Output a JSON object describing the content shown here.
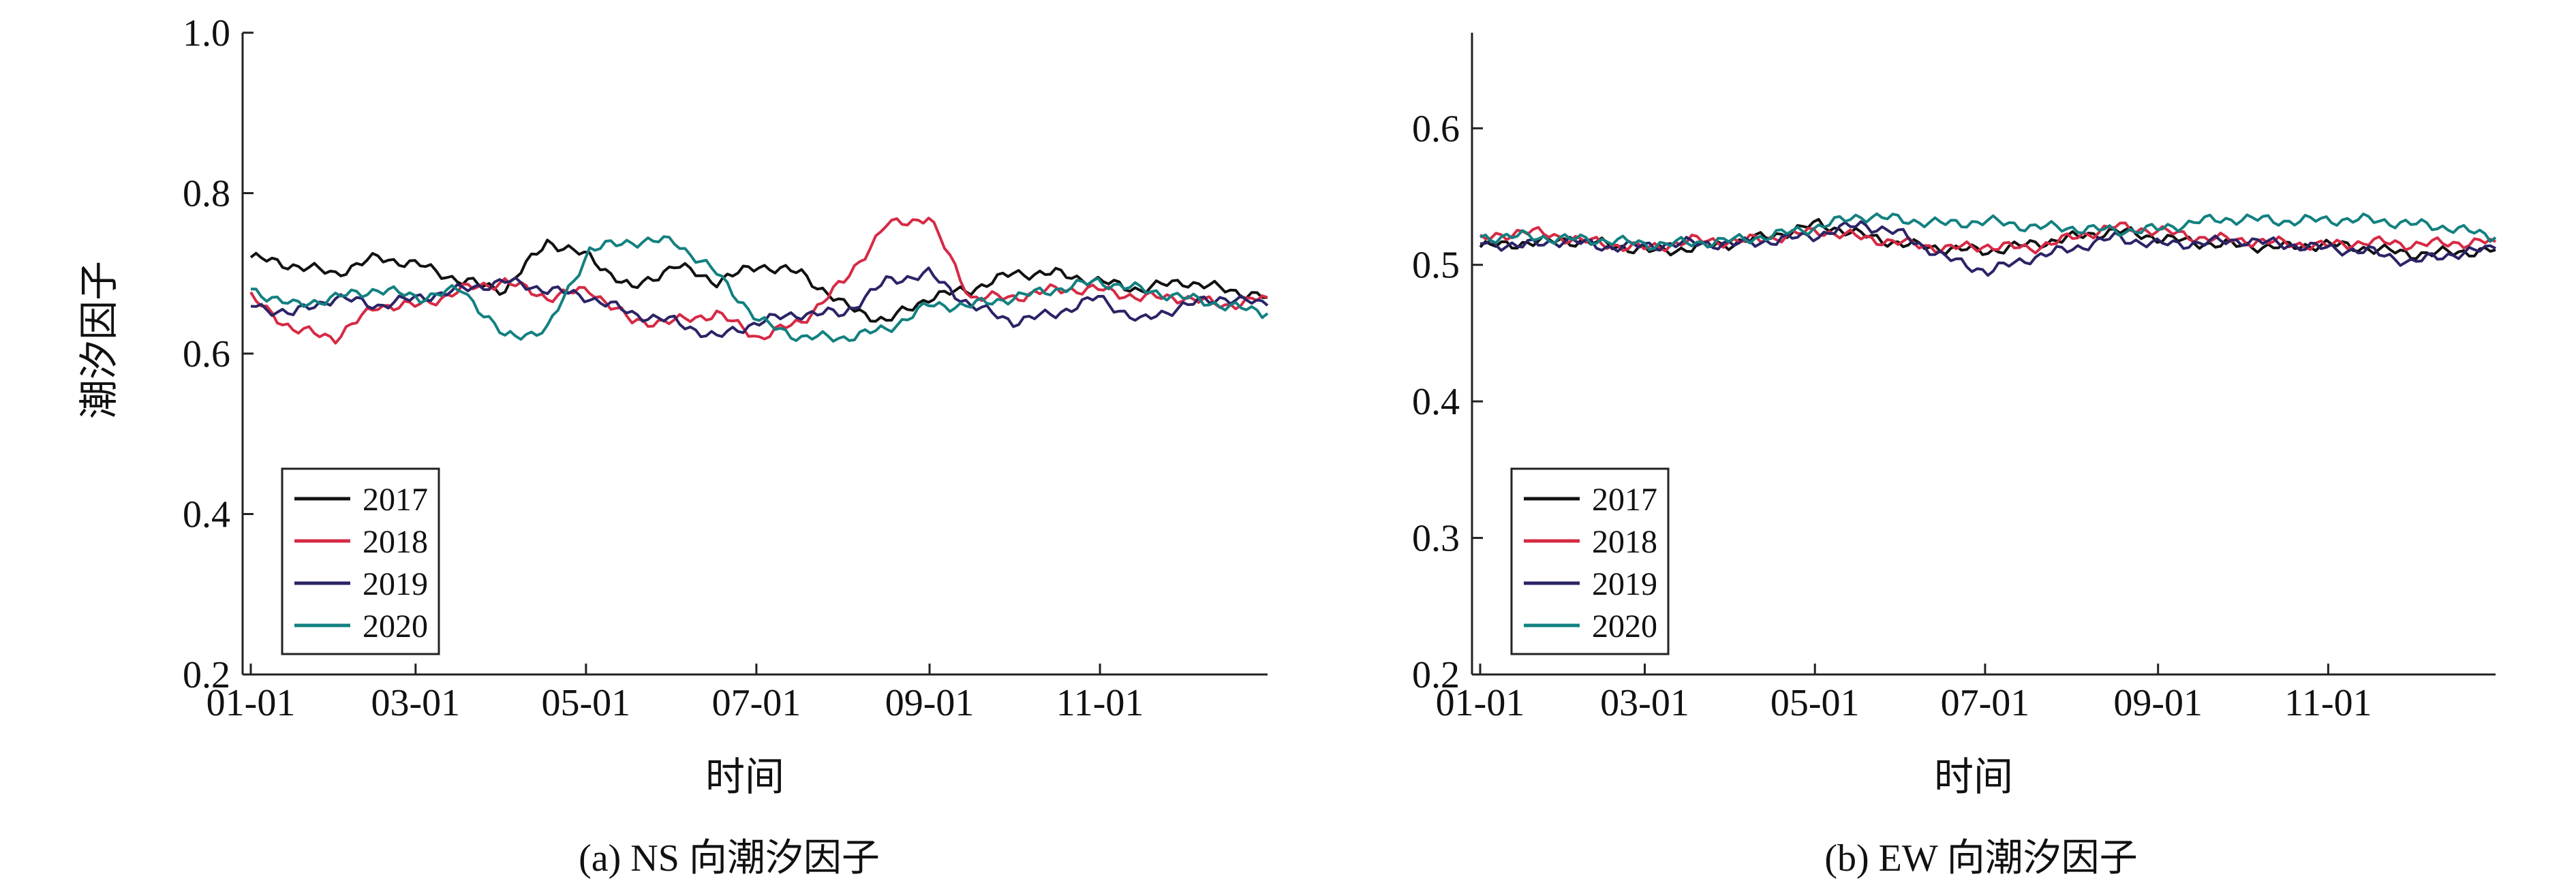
{
  "chart_data": [
    {
      "type": "line",
      "caption": "(a) NS 向潮汐因子",
      "xlabel": "时间",
      "ylabel": "潮汐因子",
      "x_ticks": [
        "01-01",
        "03-01",
        "05-01",
        "07-01",
        "09-01",
        "11-01"
      ],
      "y_ticks": [
        "0.2",
        "0.4",
        "0.6",
        "0.8",
        "1.0"
      ],
      "ylim": [
        0.2,
        1.0
      ],
      "x": [
        "01-01",
        "01-15",
        "02-01",
        "02-15",
        "03-01",
        "03-15",
        "04-01",
        "04-15",
        "05-01",
        "05-15",
        "06-01",
        "06-15",
        "07-01",
        "07-15",
        "08-01",
        "08-15",
        "09-01",
        "09-15",
        "10-01",
        "10-15",
        "11-01",
        "11-15",
        "12-01",
        "12-15",
        "12-31"
      ],
      "legend_position": "bottom-left",
      "series": [
        {
          "name": "2017",
          "color": "#111111",
          "values": [
            0.72,
            0.71,
            0.7,
            0.72,
            0.71,
            0.69,
            0.68,
            0.74,
            0.72,
            0.68,
            0.71,
            0.69,
            0.71,
            0.7,
            0.66,
            0.64,
            0.67,
            0.68,
            0.7,
            0.7,
            0.69,
            0.68,
            0.69,
            0.68,
            0.67
          ]
        },
        {
          "name": "2018",
          "color": "#d62a45",
          "values": [
            0.67,
            0.63,
            0.62,
            0.66,
            0.66,
            0.68,
            0.69,
            0.67,
            0.68,
            0.64,
            0.64,
            0.65,
            0.62,
            0.64,
            0.69,
            0.76,
            0.77,
            0.67,
            0.67,
            0.68,
            0.68,
            0.67,
            0.67,
            0.66,
            0.67
          ]
        },
        {
          "name": "2019",
          "color": "#2b2466",
          "values": [
            0.66,
            0.65,
            0.67,
            0.66,
            0.67,
            0.68,
            0.69,
            0.68,
            0.67,
            0.65,
            0.64,
            0.62,
            0.64,
            0.65,
            0.65,
            0.69,
            0.7,
            0.66,
            0.64,
            0.65,
            0.67,
            0.64,
            0.66,
            0.67,
            0.66
          ]
        },
        {
          "name": "2020",
          "color": "#138080",
          "values": [
            0.68,
            0.66,
            0.67,
            0.68,
            0.67,
            0.68,
            0.62,
            0.63,
            0.73,
            0.74,
            0.74,
            0.7,
            0.64,
            0.62,
            0.62,
            0.63,
            0.66,
            0.66,
            0.67,
            0.68,
            0.69,
            0.68,
            0.67,
            0.66,
            0.65
          ]
        }
      ]
    },
    {
      "type": "line",
      "caption": "(b) EW 向潮汐因子",
      "xlabel": "时间",
      "ylabel": "",
      "x_ticks": [
        "01-01",
        "03-01",
        "05-01",
        "07-01",
        "09-01",
        "11-01"
      ],
      "y_ticks": [
        "0.2",
        "0.3",
        "0.4",
        "0.5",
        "0.6"
      ],
      "ylim": [
        0.2,
        0.67
      ],
      "x": [
        "01-01",
        "01-15",
        "02-01",
        "02-15",
        "03-01",
        "03-15",
        "04-01",
        "04-15",
        "05-01",
        "05-15",
        "06-01",
        "06-15",
        "07-01",
        "07-15",
        "08-01",
        "08-15",
        "09-01",
        "09-15",
        "10-01",
        "10-15",
        "11-01",
        "11-15",
        "12-01",
        "12-15",
        "12-31"
      ],
      "legend_position": "bottom-left",
      "series": [
        {
          "name": "2017",
          "color": "#111111",
          "values": [
            0.513,
            0.516,
            0.518,
            0.515,
            0.51,
            0.512,
            0.516,
            0.522,
            0.53,
            0.522,
            0.515,
            0.512,
            0.51,
            0.515,
            0.52,
            0.525,
            0.52,
            0.516,
            0.514,
            0.513,
            0.515,
            0.512,
            0.508,
            0.509,
            0.511
          ]
        },
        {
          "name": "2018",
          "color": "#d62a45",
          "values": [
            0.518,
            0.525,
            0.52,
            0.515,
            0.512,
            0.518,
            0.517,
            0.52,
            0.525,
            0.52,
            0.516,
            0.512,
            0.514,
            0.512,
            0.52,
            0.528,
            0.525,
            0.52,
            0.518,
            0.516,
            0.514,
            0.517,
            0.515,
            0.516,
            0.517
          ]
        },
        {
          "name": "2019",
          "color": "#2b2466",
          "values": [
            0.516,
            0.514,
            0.518,
            0.513,
            0.514,
            0.516,
            0.515,
            0.518,
            0.522,
            0.53,
            0.522,
            0.505,
            0.495,
            0.505,
            0.512,
            0.52,
            0.515,
            0.516,
            0.518,
            0.515,
            0.512,
            0.51,
            0.502,
            0.508,
            0.512
          ]
        },
        {
          "name": "2020",
          "color": "#138080",
          "values": [
            0.52,
            0.521,
            0.519,
            0.518,
            0.515,
            0.516,
            0.518,
            0.522,
            0.528,
            0.536,
            0.533,
            0.53,
            0.532,
            0.528,
            0.527,
            0.525,
            0.526,
            0.532,
            0.534,
            0.532,
            0.533,
            0.533,
            0.53,
            0.527,
            0.52
          ]
        }
      ]
    }
  ]
}
